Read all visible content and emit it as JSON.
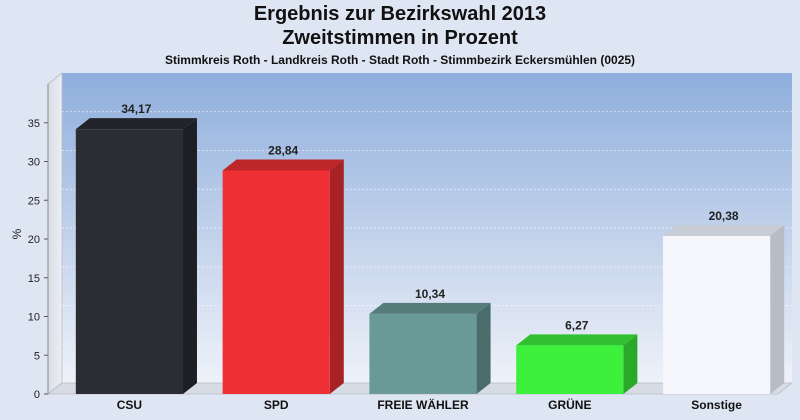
{
  "chart_data": {
    "type": "bar",
    "title": "Ergebnis zur Bezirkswahl 2013",
    "subtitle": "Zweitstimmen in Prozent",
    "caption": "Stimmkreis Roth - Landkreis Roth - Stadt Roth - Stimmbezirk Eckersmühlen (0025)",
    "ylabel": "%",
    "ylim": [
      0,
      40
    ],
    "yticks": [
      0,
      5,
      10,
      15,
      20,
      25,
      30,
      35
    ],
    "categories": [
      "CSU",
      "SPD",
      "FREIE WÄHLER",
      "GRÜNE",
      "Sonstige"
    ],
    "values": [
      34.17,
      28.84,
      10.34,
      6.27,
      20.38
    ],
    "value_labels": [
      "34,17",
      "28,84",
      "10,34",
      "6,27",
      "20,38"
    ],
    "colors": [
      "#2b2d33",
      "#ee3034",
      "#6a9a98",
      "#3cf03c",
      "#f4f6fb"
    ],
    "grid": true,
    "legend": "none"
  }
}
